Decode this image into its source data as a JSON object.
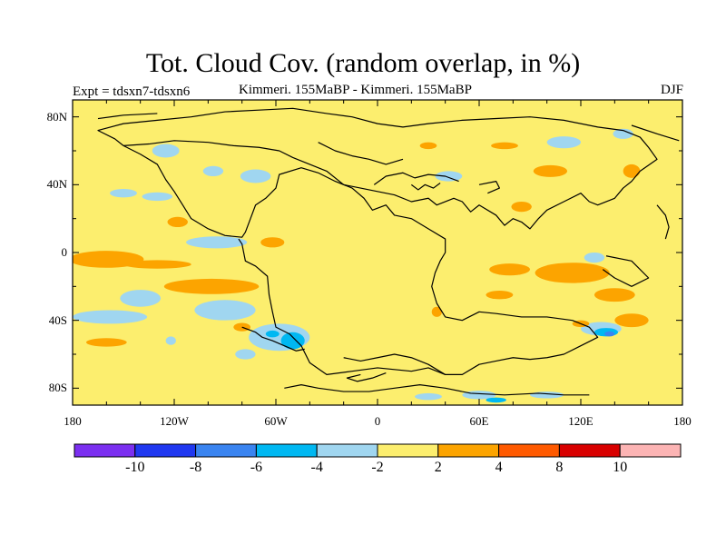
{
  "title": "Tot. Cloud Cov. (random overlap, in %)",
  "expt_label": "Expt = tdsxn7-tdsxn6",
  "subtitle": "Kimmeri. 155MaBP - Kimmeri. 155MaBP",
  "season": "DJF",
  "map": {
    "lon_range": [
      -180,
      180
    ],
    "lat_range": [
      -90,
      90
    ],
    "x_ticks": [
      {
        "lon": -180,
        "label": "180"
      },
      {
        "lon": -120,
        "label": "120W"
      },
      {
        "lon": -60,
        "label": "60W"
      },
      {
        "lon": 0,
        "label": "0"
      },
      {
        "lon": 60,
        "label": "60E"
      },
      {
        "lon": 120,
        "label": "120E"
      },
      {
        "lon": 180,
        "label": "180"
      }
    ],
    "y_ticks": [
      {
        "lat": 80,
        "label": "80N"
      },
      {
        "lat": 40,
        "label": "40N"
      },
      {
        "lat": 0,
        "label": "0"
      },
      {
        "lat": -40,
        "label": "40S"
      },
      {
        "lat": -80,
        "label": "80S"
      }
    ],
    "background_color": "#fcee6e",
    "coastline_color": "#000000"
  },
  "colorbar": {
    "colors": [
      "#7b2ff0",
      "#2038f0",
      "#3a84f0",
      "#00b8f2",
      "#a0d6f0",
      "#fcee6e",
      "#fca400",
      "#ff5a00",
      "#d80000",
      "#fcb4b4"
    ],
    "labels": [
      "-10",
      "-8",
      "-6",
      "-4",
      "-2",
      "2",
      "4",
      "8",
      "10"
    ]
  },
  "anomalies": [
    {
      "lon": -125,
      "lat": 60,
      "r_lon": 8,
      "r_lat": 4,
      "level": "-2"
    },
    {
      "lon": -150,
      "lat": 35,
      "r_lon": 8,
      "r_lat": 2.5,
      "level": "-2"
    },
    {
      "lon": -130,
      "lat": 33,
      "r_lon": 9,
      "r_lat": 2.5,
      "level": "-2"
    },
    {
      "lon": -97,
      "lat": 48,
      "r_lon": 6,
      "r_lat": 3,
      "level": "-2"
    },
    {
      "lon": -72,
      "lat": 45,
      "r_lon": 9,
      "r_lat": 4,
      "level": "-2"
    },
    {
      "lon": -118,
      "lat": 18,
      "r_lon": 6,
      "r_lat": 3,
      "level": "2"
    },
    {
      "lon": -95,
      "lat": 6,
      "r_lon": 18,
      "r_lat": 3.5,
      "level": "-2"
    },
    {
      "lon": -160,
      "lat": -4,
      "r_lon": 22,
      "r_lat": 5,
      "level": "2"
    },
    {
      "lon": -130,
      "lat": -7,
      "r_lon": 20,
      "r_lat": 2.5,
      "level": "2"
    },
    {
      "lon": -62,
      "lat": 6,
      "r_lon": 7,
      "r_lat": 3,
      "level": "2"
    },
    {
      "lon": -98,
      "lat": -20,
      "r_lon": 28,
      "r_lat": 4.5,
      "level": "2"
    },
    {
      "lon": -140,
      "lat": -27,
      "r_lon": 12,
      "r_lat": 5,
      "level": "-2"
    },
    {
      "lon": -90,
      "lat": -34,
      "r_lon": 18,
      "r_lat": 6,
      "level": "-2"
    },
    {
      "lon": -158,
      "lat": -38,
      "r_lon": 22,
      "r_lat": 4,
      "level": "-2"
    },
    {
      "lon": -160,
      "lat": -53,
      "r_lon": 12,
      "r_lat": 2.5,
      "level": "2"
    },
    {
      "lon": -80,
      "lat": -44,
      "r_lon": 5,
      "r_lat": 2.5,
      "level": "2"
    },
    {
      "lon": -58,
      "lat": -50,
      "r_lon": 18,
      "r_lat": 8,
      "level": "-2"
    },
    {
      "lon": -50,
      "lat": -52,
      "r_lon": 7,
      "r_lat": 5,
      "level": "-4"
    },
    {
      "lon": -62,
      "lat": -48,
      "r_lon": 4,
      "r_lat": 2,
      "level": "-4"
    },
    {
      "lon": -78,
      "lat": -60,
      "r_lon": 6,
      "r_lat": 3,
      "level": "-2"
    },
    {
      "lon": -122,
      "lat": -52,
      "r_lon": 3,
      "r_lat": 2.5,
      "level": "-2"
    },
    {
      "lon": 110,
      "lat": 65,
      "r_lon": 10,
      "r_lat": 3.5,
      "level": "-2"
    },
    {
      "lon": 145,
      "lat": 70,
      "r_lon": 6,
      "r_lat": 3,
      "level": "-2"
    },
    {
      "lon": 102,
      "lat": 48,
      "r_lon": 10,
      "r_lat": 3.5,
      "level": "2"
    },
    {
      "lon": 150,
      "lat": 48,
      "r_lon": 5,
      "r_lat": 4,
      "level": "2"
    },
    {
      "lon": 42,
      "lat": 45,
      "r_lon": 8,
      "r_lat": 3,
      "level": "-2"
    },
    {
      "lon": 30,
      "lat": 63,
      "r_lon": 5,
      "r_lat": 2,
      "level": "2"
    },
    {
      "lon": 75,
      "lat": 63,
      "r_lon": 8,
      "r_lat": 2,
      "level": "2"
    },
    {
      "lon": 85,
      "lat": 27,
      "r_lon": 6,
      "r_lat": 3,
      "level": "2"
    },
    {
      "lon": 78,
      "lat": -10,
      "r_lon": 12,
      "r_lat": 3.5,
      "level": "2"
    },
    {
      "lon": 115,
      "lat": -12,
      "r_lon": 22,
      "r_lat": 6,
      "level": "2"
    },
    {
      "lon": 140,
      "lat": -25,
      "r_lon": 12,
      "r_lat": 4,
      "level": "2"
    },
    {
      "lon": 72,
      "lat": -25,
      "r_lon": 8,
      "r_lat": 2.5,
      "level": "2"
    },
    {
      "lon": 128,
      "lat": -3,
      "r_lon": 6,
      "r_lat": 3,
      "level": "-2"
    },
    {
      "lon": 35,
      "lat": -35,
      "r_lon": 3,
      "r_lat": 3,
      "level": "2"
    },
    {
      "lon": 150,
      "lat": -40,
      "r_lon": 10,
      "r_lat": 4,
      "level": "2"
    },
    {
      "lon": 132,
      "lat": -45,
      "r_lon": 12,
      "r_lat": 4,
      "level": "-2"
    },
    {
      "lon": 135,
      "lat": -47,
      "r_lon": 7,
      "r_lat": 2.5,
      "level": "-4"
    },
    {
      "lon": 137,
      "lat": -48,
      "r_lon": 3,
      "r_lat": 1.5,
      "level": "-6"
    },
    {
      "lon": 120,
      "lat": -42,
      "r_lon": 5,
      "r_lat": 2,
      "level": "2"
    },
    {
      "lon": 60,
      "lat": -84,
      "r_lon": 10,
      "r_lat": 2.5,
      "level": "-2"
    },
    {
      "lon": 70,
      "lat": -87,
      "r_lon": 6,
      "r_lat": 1.5,
      "level": "-4"
    },
    {
      "lon": 100,
      "lat": -84,
      "r_lon": 10,
      "r_lat": 2,
      "level": "-2"
    },
    {
      "lon": 30,
      "lat": -85,
      "r_lon": 8,
      "r_lat": 2,
      "level": "-2"
    }
  ],
  "coastlines": [
    [
      [
        -150,
        63
      ],
      [
        -140,
        58
      ],
      [
        -130,
        52
      ],
      [
        -125,
        43
      ],
      [
        -120,
        36
      ],
      [
        -115,
        28
      ],
      [
        -110,
        20
      ],
      [
        -100,
        14
      ],
      [
        -90,
        10
      ],
      [
        -80,
        9
      ],
      [
        -78,
        12
      ],
      [
        -75,
        20
      ],
      [
        -72,
        28
      ],
      [
        -66,
        32
      ],
      [
        -60,
        38
      ],
      [
        -58,
        46
      ],
      [
        -45,
        50
      ],
      [
        -35,
        47
      ],
      [
        -25,
        42
      ],
      [
        -15,
        38
      ],
      [
        -8,
        32
      ],
      [
        -3,
        25
      ],
      [
        5,
        28
      ],
      [
        10,
        22
      ],
      [
        20,
        20
      ],
      [
        30,
        14
      ],
      [
        40,
        8
      ],
      [
        40,
        0
      ],
      [
        37,
        -5
      ],
      [
        34,
        -12
      ],
      [
        32,
        -20
      ],
      [
        35,
        -30
      ],
      [
        40,
        -38
      ],
      [
        50,
        -40
      ],
      [
        60,
        -35
      ],
      [
        70,
        -36
      ],
      [
        85,
        -38
      ],
      [
        100,
        -38
      ],
      [
        115,
        -40
      ],
      [
        125,
        -44
      ],
      [
        130,
        -50
      ],
      [
        120,
        -55
      ],
      [
        110,
        -60
      ],
      [
        100,
        -62
      ],
      [
        90,
        -63
      ],
      [
        80,
        -62
      ],
      [
        70,
        -64
      ],
      [
        60,
        -66
      ],
      [
        50,
        -72
      ],
      [
        40,
        -72
      ],
      [
        30,
        -68
      ],
      [
        20,
        -70
      ],
      [
        0,
        -68
      ],
      [
        -15,
        -70
      ],
      [
        -30,
        -72
      ],
      [
        -40,
        -65
      ],
      [
        -45,
        -55
      ],
      [
        -52,
        -48
      ],
      [
        -60,
        -44
      ],
      [
        -62,
        -35
      ],
      [
        -64,
        -25
      ],
      [
        -65,
        -14
      ],
      [
        -72,
        -8
      ],
      [
        -78,
        -5
      ],
      [
        -80,
        5
      ],
      [
        -82,
        8
      ]
    ],
    [
      [
        -80,
        -44
      ],
      [
        -72,
        -47
      ],
      [
        -68,
        -50
      ],
      [
        -62,
        -52
      ],
      [
        -55,
        -55
      ],
      [
        -48,
        -58
      ],
      [
        -43,
        -57
      ]
    ],
    [
      [
        -20,
        -62
      ],
      [
        -10,
        -64
      ],
      [
        0,
        -62
      ],
      [
        10,
        -60
      ],
      [
        20,
        -62
      ],
      [
        30,
        -66
      ],
      [
        40,
        -72
      ]
    ],
    [
      [
        -10,
        -72
      ],
      [
        -18,
        -74
      ],
      [
        -12,
        -76
      ],
      [
        -3,
        -74
      ],
      [
        5,
        -71
      ]
    ],
    [
      [
        -55,
        -80
      ],
      [
        -45,
        -78
      ],
      [
        -35,
        -80
      ],
      [
        -20,
        -82
      ],
      [
        -5,
        -82
      ],
      [
        10,
        -80
      ],
      [
        25,
        -78
      ],
      [
        40,
        -80
      ],
      [
        55,
        -83
      ],
      [
        75,
        -84
      ],
      [
        95,
        -83
      ],
      [
        110,
        -84
      ],
      [
        125,
        -84
      ]
    ],
    [
      [
        -150,
        63
      ],
      [
        -155,
        67
      ],
      [
        -165,
        72
      ],
      [
        -150,
        76
      ],
      [
        -130,
        78
      ],
      [
        -110,
        80
      ],
      [
        -90,
        83
      ],
      [
        -70,
        84
      ],
      [
        -50,
        85
      ],
      [
        -30,
        82
      ],
      [
        -15,
        80
      ],
      [
        0,
        76
      ],
      [
        15,
        74
      ],
      [
        30,
        76
      ],
      [
        50,
        78
      ],
      [
        70,
        79
      ],
      [
        90,
        80
      ],
      [
        110,
        78
      ],
      [
        130,
        74
      ],
      [
        145,
        72
      ],
      [
        155,
        68
      ],
      [
        160,
        62
      ],
      [
        165,
        55
      ],
      [
        155,
        48
      ],
      [
        150,
        42
      ],
      [
        145,
        38
      ],
      [
        140,
        32
      ],
      [
        130,
        28
      ],
      [
        125,
        30
      ],
      [
        120,
        35
      ],
      [
        110,
        30
      ],
      [
        100,
        25
      ],
      [
        95,
        20
      ],
      [
        90,
        14
      ],
      [
        85,
        18
      ],
      [
        80,
        20
      ],
      [
        75,
        16
      ],
      [
        70,
        22
      ],
      [
        60,
        28
      ],
      [
        55,
        24
      ],
      [
        50,
        30
      ],
      [
        45,
        32
      ],
      [
        35,
        28
      ],
      [
        30,
        32
      ],
      [
        20,
        30
      ],
      [
        10,
        34
      ],
      [
        0,
        36
      ],
      [
        -10,
        38
      ],
      [
        -20,
        40
      ],
      [
        -30,
        48
      ],
      [
        -40,
        52
      ],
      [
        -50,
        56
      ],
      [
        -58,
        60
      ],
      [
        -70,
        62
      ],
      [
        -85,
        63
      ],
      [
        -100,
        65
      ],
      [
        -120,
        66
      ],
      [
        -135,
        64
      ],
      [
        -150,
        63
      ]
    ],
    [
      [
        -2,
        40
      ],
      [
        5,
        45
      ],
      [
        15,
        47
      ],
      [
        22,
        44
      ],
      [
        30,
        46
      ],
      [
        40,
        45
      ],
      [
        48,
        42
      ]
    ],
    [
      [
        -35,
        65
      ],
      [
        -25,
        60
      ],
      [
        -15,
        57
      ],
      [
        -5,
        55
      ],
      [
        5,
        52
      ],
      [
        15,
        55
      ]
    ],
    [
      [
        20,
        40
      ],
      [
        24,
        37
      ],
      [
        28,
        40
      ],
      [
        33,
        38
      ],
      [
        37,
        41
      ]
    ],
    [
      [
        135,
        -2
      ],
      [
        150,
        -5
      ],
      [
        160,
        -15
      ],
      [
        150,
        -20
      ],
      [
        140,
        -15
      ],
      [
        133,
        -10
      ]
    ],
    [
      [
        -165,
        79
      ],
      [
        -150,
        81
      ],
      [
        -130,
        82
      ]
    ],
    [
      [
        150,
        75
      ],
      [
        165,
        70
      ],
      [
        178,
        66
      ]
    ],
    [
      [
        60,
        40
      ],
      [
        70,
        42
      ],
      [
        72,
        38
      ],
      [
        65,
        35
      ]
    ],
    [
      [
        165,
        28
      ],
      [
        170,
        22
      ],
      [
        172,
        15
      ],
      [
        170,
        8
      ]
    ]
  ]
}
